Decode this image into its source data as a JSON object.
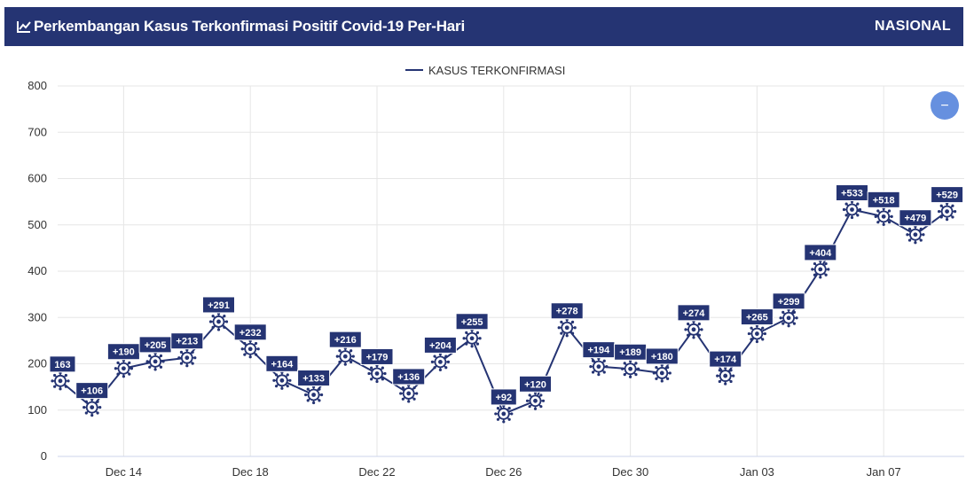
{
  "header": {
    "title": "Perkembangan Kasus Terkonfirmasi Positif Covid-19 Per-Hari",
    "scope": "NASIONAL",
    "icon": "line-chart-icon"
  },
  "zoom_button": {
    "label": "−",
    "icon": "minus-icon",
    "color": "#6690DF"
  },
  "colors": {
    "accent": "#253473",
    "grid": "#E6E6E6"
  },
  "chart_data": {
    "type": "line",
    "legend": {
      "label": "KASUS TERKONFIRMASI",
      "position": "top-center"
    },
    "x_ticks": [
      "Dec 14",
      "Dec 18",
      "Dec 22",
      "Dec 26",
      "Dec 30",
      "Jan 03",
      "Jan 07"
    ],
    "y_ticks": [
      0,
      100,
      200,
      300,
      400,
      500,
      600,
      700,
      800
    ],
    "ylim": [
      0,
      800
    ],
    "grid": true,
    "series": [
      {
        "name": "KASUS TERKONFIRMASI",
        "color": "#253473",
        "points": [
          {
            "x": "2020-12-12",
            "y": 163,
            "label": "163"
          },
          {
            "x": "2020-12-13",
            "y": 106,
            "label": "+106"
          },
          {
            "x": "2020-12-14",
            "y": 190,
            "label": "+190"
          },
          {
            "x": "2020-12-15",
            "y": 205,
            "label": "+205"
          },
          {
            "x": "2020-12-16",
            "y": 213,
            "label": "+213"
          },
          {
            "x": "2020-12-17",
            "y": 291,
            "label": "+291"
          },
          {
            "x": "2020-12-18",
            "y": 232,
            "label": "+232"
          },
          {
            "x": "2020-12-19",
            "y": 164,
            "label": "+164"
          },
          {
            "x": "2020-12-20",
            "y": 133,
            "label": "+133"
          },
          {
            "x": "2020-12-21",
            "y": 216,
            "label": "+216"
          },
          {
            "x": "2020-12-22",
            "y": 179,
            "label": "+179"
          },
          {
            "x": "2020-12-23",
            "y": 136,
            "label": "+136"
          },
          {
            "x": "2020-12-24",
            "y": 204,
            "label": "+204"
          },
          {
            "x": "2020-12-25",
            "y": 255,
            "label": "+255"
          },
          {
            "x": "2020-12-26",
            "y": 92,
            "label": "+92"
          },
          {
            "x": "2020-12-27",
            "y": 120,
            "label": "+120"
          },
          {
            "x": "2020-12-28",
            "y": 278,
            "label": "+278"
          },
          {
            "x": "2020-12-29",
            "y": 194,
            "label": "+194"
          },
          {
            "x": "2020-12-30",
            "y": 189,
            "label": "+189"
          },
          {
            "x": "2020-12-31",
            "y": 180,
            "label": "+180"
          },
          {
            "x": "2021-01-01",
            "y": 274,
            "label": "+274"
          },
          {
            "x": "2021-01-02",
            "y": 174,
            "label": "+174"
          },
          {
            "x": "2021-01-03",
            "y": 265,
            "label": "+265"
          },
          {
            "x": "2021-01-04",
            "y": 299,
            "label": "+299"
          },
          {
            "x": "2021-01-05",
            "y": 404,
            "label": "+404"
          },
          {
            "x": "2021-01-06",
            "y": 533,
            "label": "+533"
          },
          {
            "x": "2021-01-07",
            "y": 518,
            "label": "+518"
          },
          {
            "x": "2021-01-08",
            "y": 479,
            "label": "+479"
          },
          {
            "x": "2021-01-09",
            "y": 529,
            "label": "+529"
          }
        ]
      }
    ]
  }
}
